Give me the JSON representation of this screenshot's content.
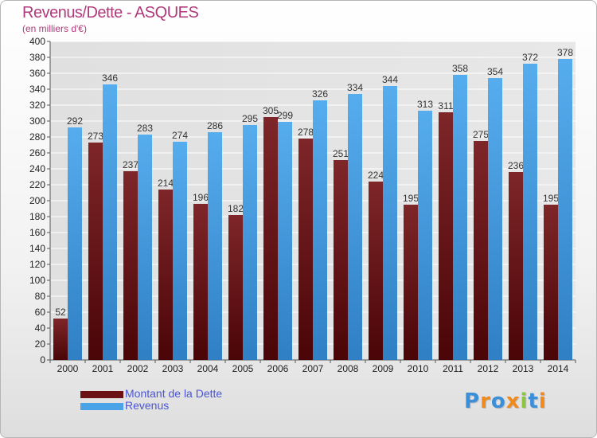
{
  "title": "Revenus/Dette - ASQUES",
  "subtitle": "(en milliers d'€)",
  "colors": {
    "dette": "#7a1f22",
    "dette_dark": "#4a0507",
    "revenus": "#4aa3e6",
    "revenus_dark": "#2a7cc0",
    "title": "#b03a7b",
    "legend_text": "#4a55d6"
  },
  "legend": [
    {
      "label": "Montant de la Dette",
      "color": "#6b1214"
    },
    {
      "label": "Revenus",
      "color": "#4aa3e6"
    }
  ],
  "logo": {
    "text": "Proxiti",
    "letters": [
      {
        "ch": "P",
        "color": "#3b8fd9"
      },
      {
        "ch": "r",
        "color": "#f08a1c"
      },
      {
        "ch": "o",
        "color": "#3b8fd9"
      },
      {
        "ch": "x",
        "color": "#f08a1c"
      },
      {
        "ch": "i",
        "color": "#8cc63f"
      },
      {
        "ch": "t",
        "color": "#3b8fd9"
      },
      {
        "ch": "i",
        "color": "#f08a1c"
      }
    ]
  },
  "chart_data": {
    "type": "bar",
    "title": "Revenus/Dette - ASQUES",
    "subtitle": "(en milliers d'€)",
    "categories": [
      "2000",
      "2001",
      "2002",
      "2003",
      "2004",
      "2005",
      "2006",
      "2007",
      "2008",
      "2009",
      "2010",
      "2011",
      "2012",
      "2013",
      "2014"
    ],
    "series": [
      {
        "name": "Montant de la Dette",
        "values": [
          52,
          273,
          237,
          214,
          196,
          182,
          305,
          278,
          251,
          224,
          195,
          311,
          275,
          236,
          195
        ]
      },
      {
        "name": "Revenus",
        "values": [
          292,
          346,
          283,
          274,
          286,
          295,
          299,
          326,
          334,
          344,
          313,
          358,
          354,
          372,
          378
        ]
      }
    ],
    "ylim": [
      0,
      400
    ],
    "yticks": [
      0,
      20,
      40,
      60,
      80,
      100,
      120,
      140,
      160,
      180,
      200,
      220,
      240,
      260,
      280,
      300,
      320,
      340,
      360,
      380,
      400
    ],
    "grid": true,
    "legend_position": "bottom-left"
  }
}
